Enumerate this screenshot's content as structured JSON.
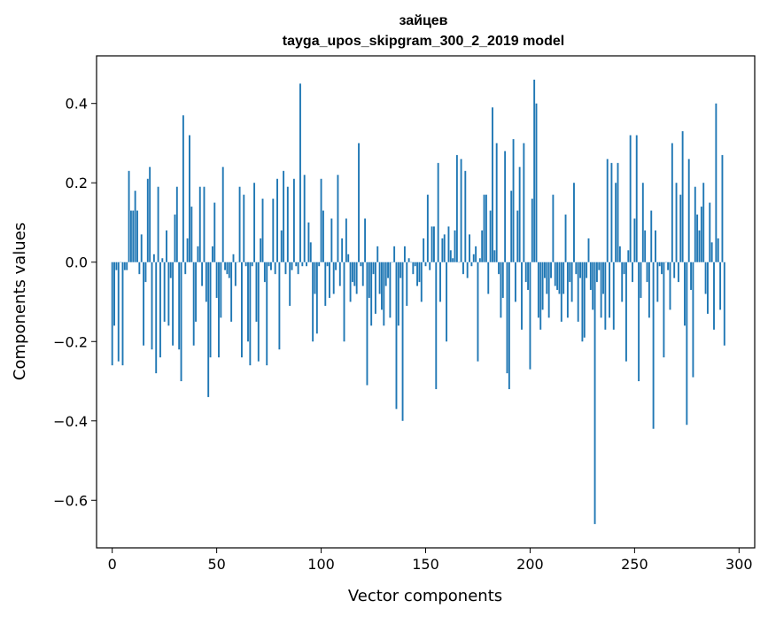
{
  "chart_data": {
    "type": "bar",
    "title": "зайцев",
    "subtitle": "tayga_upos_skipgram_300_2_2019 model",
    "xlabel": "Vector components",
    "ylabel": "Components values",
    "xlim": [
      -7.5,
      307.5
    ],
    "ylim": [
      -0.72,
      0.52
    ],
    "xticks": [
      0,
      50,
      100,
      150,
      200,
      250,
      300
    ],
    "yticks": [
      -0.6,
      -0.4,
      -0.2,
      0.0,
      0.2,
      0.4
    ],
    "xtick_labels": [
      "0",
      "50",
      "100",
      "150",
      "200",
      "250",
      "300"
    ],
    "ytick_labels": [
      "−0.6",
      "−0.4",
      "−0.2",
      "0.0",
      "0.2",
      "0.4"
    ],
    "bar_color": "#1f77b4",
    "values": [
      -0.26,
      -0.16,
      -0.02,
      -0.25,
      0.0,
      -0.26,
      -0.02,
      -0.02,
      0.23,
      0.13,
      0.13,
      0.18,
      0.13,
      -0.03,
      0.07,
      -0.21,
      -0.05,
      0.21,
      0.24,
      -0.22,
      0.02,
      -0.28,
      0.19,
      -0.24,
      0.01,
      -0.15,
      0.08,
      -0.16,
      -0.04,
      -0.21,
      0.12,
      0.19,
      -0.22,
      -0.3,
      0.37,
      -0.03,
      0.06,
      0.32,
      0.14,
      -0.21,
      -0.15,
      0.04,
      0.19,
      -0.06,
      0.19,
      -0.1,
      -0.34,
      -0.24,
      0.04,
      0.15,
      -0.09,
      -0.24,
      -0.14,
      0.24,
      -0.02,
      -0.03,
      -0.04,
      -0.15,
      0.02,
      -0.06,
      0.0,
      0.19,
      -0.24,
      0.17,
      -0.01,
      -0.2,
      -0.26,
      -0.01,
      0.2,
      -0.15,
      -0.25,
      0.06,
      0.16,
      -0.05,
      -0.26,
      -0.01,
      -0.02,
      0.16,
      -0.03,
      0.21,
      -0.22,
      0.08,
      0.23,
      -0.03,
      0.19,
      -0.11,
      -0.02,
      0.21,
      -0.01,
      -0.03,
      0.45,
      -0.01,
      0.22,
      -0.01,
      0.1,
      0.05,
      -0.2,
      -0.08,
      -0.18,
      -0.01,
      0.21,
      0.13,
      -0.11,
      -0.01,
      -0.09,
      0.11,
      -0.08,
      -0.02,
      0.22,
      -0.06,
      0.06,
      -0.2,
      0.11,
      0.02,
      -0.1,
      -0.05,
      -0.06,
      -0.08,
      0.3,
      -0.01,
      -0.06,
      0.11,
      -0.31,
      -0.09,
      -0.16,
      -0.03,
      -0.13,
      0.04,
      -0.08,
      -0.12,
      -0.16,
      -0.06,
      -0.04,
      -0.14,
      0.0,
      0.04,
      -0.37,
      -0.16,
      -0.04,
      -0.4,
      0.04,
      -0.11,
      0.01,
      0.0,
      -0.03,
      -0.01,
      -0.06,
      -0.05,
      -0.1,
      0.06,
      -0.01,
      0.17,
      -0.02,
      0.09,
      0.09,
      -0.32,
      0.25,
      -0.1,
      0.06,
      0.07,
      -0.2,
      0.09,
      0.03,
      0.01,
      0.08,
      0.27,
      0.0,
      0.26,
      -0.03,
      0.23,
      -0.04,
      0.07,
      -0.01,
      0.02,
      0.04,
      -0.25,
      0.01,
      0.08,
      0.17,
      0.17,
      -0.08,
      0.13,
      0.39,
      0.03,
      0.3,
      -0.03,
      -0.14,
      -0.09,
      0.28,
      -0.28,
      -0.32,
      0.18,
      0.31,
      -0.1,
      0.13,
      0.24,
      -0.17,
      0.3,
      -0.05,
      -0.07,
      -0.27,
      0.16,
      0.46,
      0.4,
      -0.14,
      -0.17,
      -0.12,
      -0.04,
      -0.08,
      -0.14,
      -0.04,
      0.17,
      -0.06,
      -0.07,
      -0.08,
      -0.15,
      -0.08,
      0.12,
      -0.14,
      -0.05,
      -0.1,
      0.2,
      -0.03,
      -0.15,
      -0.04,
      -0.2,
      -0.19,
      -0.04,
      0.06,
      -0.07,
      -0.12,
      -0.66,
      -0.05,
      -0.02,
      -0.14,
      -0.08,
      -0.17,
      0.26,
      -0.14,
      0.25,
      -0.17,
      0.2,
      0.25,
      0.04,
      -0.1,
      -0.03,
      -0.25,
      0.03,
      0.32,
      -0.05,
      0.11,
      0.32,
      -0.3,
      -0.09,
      0.2,
      0.08,
      -0.05,
      -0.14,
      0.13,
      -0.42,
      0.08,
      -0.1,
      -0.01,
      -0.03,
      -0.24,
      0.0,
      -0.02,
      -0.12,
      0.3,
      -0.04,
      0.2,
      -0.05,
      0.17,
      0.33,
      -0.16,
      -0.41,
      0.26,
      -0.07,
      -0.29,
      0.19,
      0.12,
      0.08,
      0.14,
      0.2,
      -0.08,
      -0.13,
      0.15,
      0.05,
      -0.17,
      0.4,
      0.06,
      -0.12,
      0.27,
      -0.21
    ]
  }
}
